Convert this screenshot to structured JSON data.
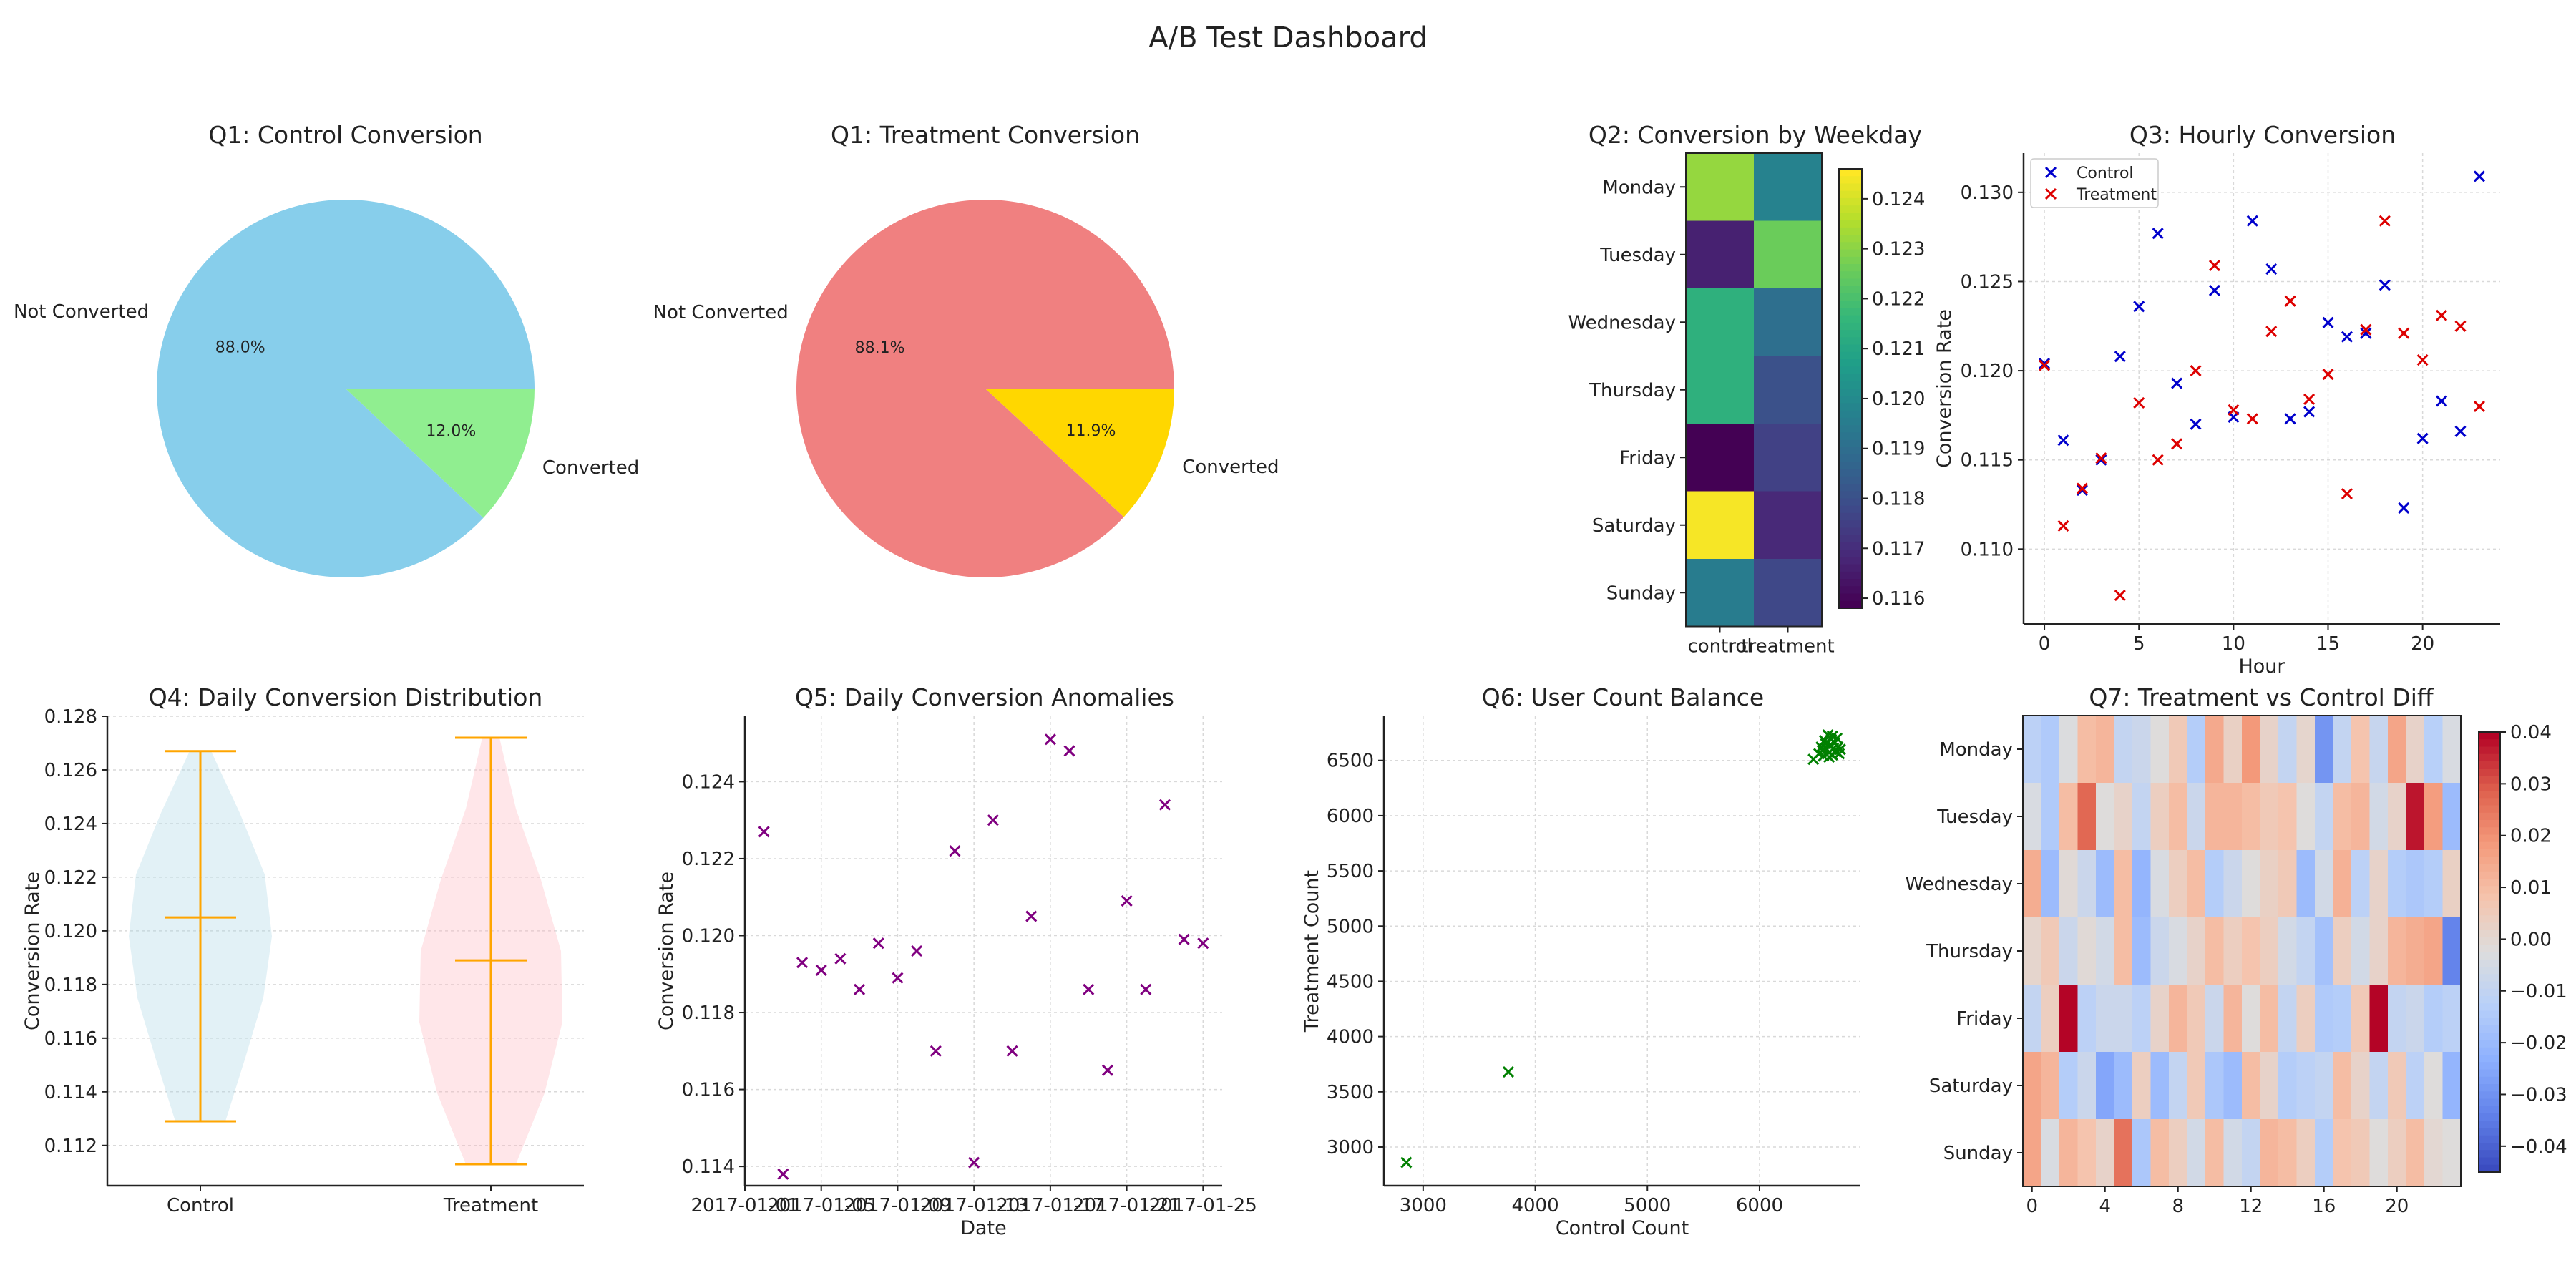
{
  "title": "A/B Test Dashboard",
  "chart_data": [
    {
      "id": "q1_control",
      "type": "pie",
      "title": "Q1: Control Conversion",
      "labels": [
        "Not Converted",
        "Converted"
      ],
      "values": [
        88.0,
        12.0
      ],
      "value_labels": [
        "88.0%",
        "12.0%"
      ],
      "colors": [
        "#87ceeb",
        "#90ee90"
      ]
    },
    {
      "id": "q1_treatment",
      "type": "pie",
      "title": "Q1: Treatment Conversion",
      "labels": [
        "Not Converted",
        "Converted"
      ],
      "values": [
        88.1,
        11.9
      ],
      "value_labels": [
        "88.1%",
        "11.9%"
      ],
      "colors": [
        "#f08080",
        "#ffd700"
      ]
    },
    {
      "id": "q2",
      "type": "heatmap",
      "title": "Q2: Conversion by Weekday",
      "columns": [
        "control",
        "treatment"
      ],
      "rows": [
        "Monday",
        "Tuesday",
        "Wednesday",
        "Thursday",
        "Friday",
        "Saturday",
        "Sunday"
      ],
      "values": [
        [
          0.1232,
          0.1197
        ],
        [
          0.1166,
          0.1226
        ],
        [
          0.1214,
          0.119
        ],
        [
          0.1214,
          0.118
        ],
        [
          0.1158,
          0.1175
        ],
        [
          0.1245,
          0.1168
        ],
        [
          0.1195,
          0.1177
        ]
      ],
      "colormap": "viridis",
      "vmin": 0.1158,
      "vmax": 0.1246,
      "colorbar_ticks": [
        "0.116",
        "0.117",
        "0.118",
        "0.119",
        "0.120",
        "0.121",
        "0.122",
        "0.123",
        "0.124"
      ]
    },
    {
      "id": "q3",
      "type": "scatter",
      "title": "Q3: Hourly Conversion",
      "xlabel": "Hour",
      "ylabel": "Conversion Rate",
      "xlim": [
        -1.1,
        24.1
      ],
      "ylim": [
        0.1058,
        0.1322
      ],
      "xticks": [
        "0",
        "5",
        "10",
        "15",
        "20"
      ],
      "yticks": [
        "0.110",
        "0.115",
        "0.120",
        "0.125",
        "0.130"
      ],
      "grid": true,
      "legend": "top-left",
      "series": [
        {
          "name": "Control",
          "color": "#0000cc",
          "marker": "x",
          "x": [
            0,
            1,
            2,
            3,
            4,
            5,
            6,
            7,
            8,
            9,
            10,
            11,
            12,
            13,
            14,
            15,
            16,
            17,
            18,
            19,
            20,
            21,
            22,
            23
          ],
          "y": [
            0.1204,
            0.1161,
            0.1133,
            0.115,
            0.1208,
            0.1236,
            0.1277,
            0.1193,
            0.117,
            0.1245,
            0.1174,
            0.1284,
            0.1257,
            0.1173,
            0.1177,
            0.1227,
            0.1219,
            0.1221,
            0.1248,
            0.1123,
            0.1162,
            0.1183,
            0.1166,
            0.1309
          ]
        },
        {
          "name": "Treatment",
          "color": "#dd0000",
          "marker": "x",
          "x": [
            0,
            1,
            2,
            3,
            4,
            5,
            6,
            7,
            8,
            9,
            10,
            11,
            12,
            13,
            14,
            15,
            16,
            17,
            18,
            19,
            20,
            21,
            22,
            23
          ],
          "y": [
            0.1203,
            0.1113,
            0.1134,
            0.1151,
            0.1074,
            0.1182,
            0.115,
            0.1159,
            0.12,
            0.1259,
            0.1178,
            0.1173,
            0.1222,
            0.1239,
            0.1184,
            0.1198,
            0.1131,
            0.1223,
            0.1284,
            0.1221,
            0.1206,
            0.1231,
            0.1225,
            0.118
          ]
        }
      ]
    },
    {
      "id": "q4",
      "type": "violin",
      "title": "Q4: Daily Conversion Distribution",
      "ylabel": "Conversion Rate",
      "categories": [
        "Control",
        "Treatment"
      ],
      "ylim": [
        0.1105,
        0.128
      ],
      "yticks": [
        "0.112",
        "0.114",
        "0.116",
        "0.118",
        "0.120",
        "0.122",
        "0.124",
        "0.126",
        "0.128"
      ],
      "grid": true,
      "series": [
        {
          "name": "Control",
          "min": 0.1129,
          "max": 0.1267,
          "mean": 0.1205,
          "fill": "#add8e6"
        },
        {
          "name": "Treatment",
          "min": 0.1113,
          "max": 0.1272,
          "mean": 0.1189,
          "fill": "#ffb6c1"
        }
      ]
    },
    {
      "id": "q5",
      "type": "scatter",
      "title": "Q5: Daily Conversion Anomalies",
      "xlabel": "Date",
      "ylabel": "Conversion Rate",
      "xlim": [
        0,
        25
      ],
      "ylim": [
        0.1135,
        0.1257
      ],
      "xticks": [
        "2017-01-01",
        "2017-01-05",
        "2017-01-09",
        "2017-01-13",
        "2017-01-17",
        "2017-01-21",
        "2017-01-25"
      ],
      "yticks": [
        "0.114",
        "0.116",
        "0.118",
        "0.120",
        "0.122",
        "0.124"
      ],
      "grid": true,
      "series": [
        {
          "name": "",
          "color": "#800080",
          "marker": "x",
          "x": [
            1,
            2,
            3,
            4,
            5,
            6,
            7,
            8,
            9,
            10,
            11,
            12,
            13,
            14,
            15,
            16,
            17,
            18,
            19,
            20,
            21,
            22,
            23,
            24
          ],
          "y": [
            0.1227,
            0.1138,
            0.1193,
            0.1191,
            0.1194,
            0.1186,
            0.1198,
            0.1189,
            0.1196,
            0.117,
            0.1222,
            0.1141,
            0.123,
            0.117,
            0.1205,
            0.1251,
            0.1248,
            0.1186,
            0.1165,
            0.1209,
            0.1186,
            0.1234,
            0.1199,
            0.1198
          ]
        }
      ]
    },
    {
      "id": "q6",
      "type": "scatter",
      "title": "Q6: User Count Balance",
      "xlabel": "Control Count",
      "ylabel": "Treatment Count",
      "xlim": [
        2650,
        6900
      ],
      "ylim": [
        2650,
        6900
      ],
      "xticks": [
        "3000",
        "4000",
        "5000",
        "6000"
      ],
      "yticks": [
        "3000",
        "3500",
        "4000",
        "4500",
        "5000",
        "5500",
        "6000",
        "6500"
      ],
      "grid": true,
      "series": [
        {
          "name": "",
          "color": "#008000",
          "marker": "x",
          "x": [
            2850,
            3760,
            6480,
            6530,
            6550,
            6570,
            6580,
            6600,
            6610,
            6620,
            6630,
            6640,
            6650,
            6660,
            6670,
            6680,
            6690,
            6700,
            6710,
            6560,
            6590,
            6620,
            6650,
            6720
          ],
          "y": [
            2860,
            3680,
            6510,
            6560,
            6620,
            6540,
            6680,
            6600,
            6730,
            6570,
            6640,
            6690,
            6550,
            6610,
            6660,
            6580,
            6700,
            6620,
            6560,
            6590,
            6650,
            6530,
            6720,
            6600
          ]
        }
      ]
    },
    {
      "id": "q7",
      "type": "heatmap",
      "title": "Q7: Treatment vs Control Diff",
      "rows": [
        "Monday",
        "Tuesday",
        "Wednesday",
        "Thursday",
        "Friday",
        "Saturday",
        "Sunday"
      ],
      "columns": [
        0,
        1,
        2,
        3,
        4,
        5,
        6,
        7,
        8,
        9,
        10,
        11,
        12,
        13,
        14,
        15,
        16,
        17,
        18,
        19,
        20,
        21,
        22,
        23
      ],
      "xticks": [
        "0",
        "4",
        "8",
        "12",
        "16",
        "20"
      ],
      "colormap": "coolwarm",
      "vmin": -0.045,
      "vmax": 0.04,
      "colorbar_ticks": [
        "0.04",
        "0.03",
        "0.02",
        "0.01",
        "0.00",
        "−0.01",
        "−0.02",
        "−0.03",
        "−0.04"
      ],
      "values": [
        [
          -0.012,
          -0.015,
          -0.003,
          0.01,
          0.012,
          -0.01,
          -0.008,
          -0.002,
          0.006,
          -0.014,
          0.015,
          0.003,
          0.019,
          0.002,
          -0.01,
          0.001,
          -0.03,
          -0.01,
          0.008,
          -0.009,
          0.016,
          0.002,
          -0.013,
          -0.004
        ],
        [
          -0.004,
          -0.015,
          0.01,
          0.028,
          -0.002,
          0.002,
          -0.01,
          0.004,
          0.01,
          -0.008,
          0.012,
          0.012,
          0.01,
          0.006,
          0.008,
          -0.002,
          -0.01,
          0.01,
          0.012,
          -0.006,
          0.002,
          0.038,
          0.018,
          -0.02
        ],
        [
          0.014,
          -0.02,
          -0.001,
          -0.008,
          -0.02,
          0.01,
          -0.022,
          -0.004,
          0.004,
          0.01,
          -0.014,
          -0.008,
          -0.002,
          0.003,
          0.006,
          -0.02,
          -0.006,
          0.013,
          -0.012,
          0.002,
          -0.014,
          -0.016,
          -0.014,
          0.003
        ],
        [
          0.001,
          0.006,
          -0.008,
          -0.001,
          -0.006,
          0.01,
          -0.02,
          -0.008,
          -0.004,
          0.002,
          0.01,
          0.004,
          0.008,
          0.004,
          -0.006,
          -0.01,
          -0.018,
          0.004,
          -0.006,
          0.002,
          0.012,
          0.014,
          0.016,
          -0.034
        ],
        [
          -0.01,
          0.004,
          0.04,
          -0.012,
          -0.008,
          -0.008,
          -0.012,
          0.002,
          0.012,
          0.006,
          -0.008,
          0.012,
          -0.002,
          0.01,
          -0.01,
          0.004,
          -0.015,
          -0.014,
          0.006,
          0.04,
          -0.01,
          -0.008,
          -0.014,
          -0.012
        ],
        [
          0.016,
          0.012,
          -0.014,
          -0.008,
          -0.026,
          -0.02,
          0.004,
          -0.02,
          -0.01,
          0.006,
          -0.016,
          -0.02,
          0.01,
          0.002,
          -0.014,
          -0.012,
          -0.01,
          0.01,
          0.002,
          -0.01,
          0.006,
          -0.012,
          -0.002,
          -0.022
        ],
        [
          0.016,
          -0.004,
          0.012,
          0.008,
          0.002,
          0.026,
          -0.016,
          0.01,
          0.004,
          -0.006,
          0.01,
          -0.006,
          -0.01,
          0.012,
          0.01,
          0.004,
          -0.014,
          0.008,
          0.006,
          -0.002,
          0.004,
          0.01,
          0.0,
          -0.002
        ]
      ]
    }
  ]
}
